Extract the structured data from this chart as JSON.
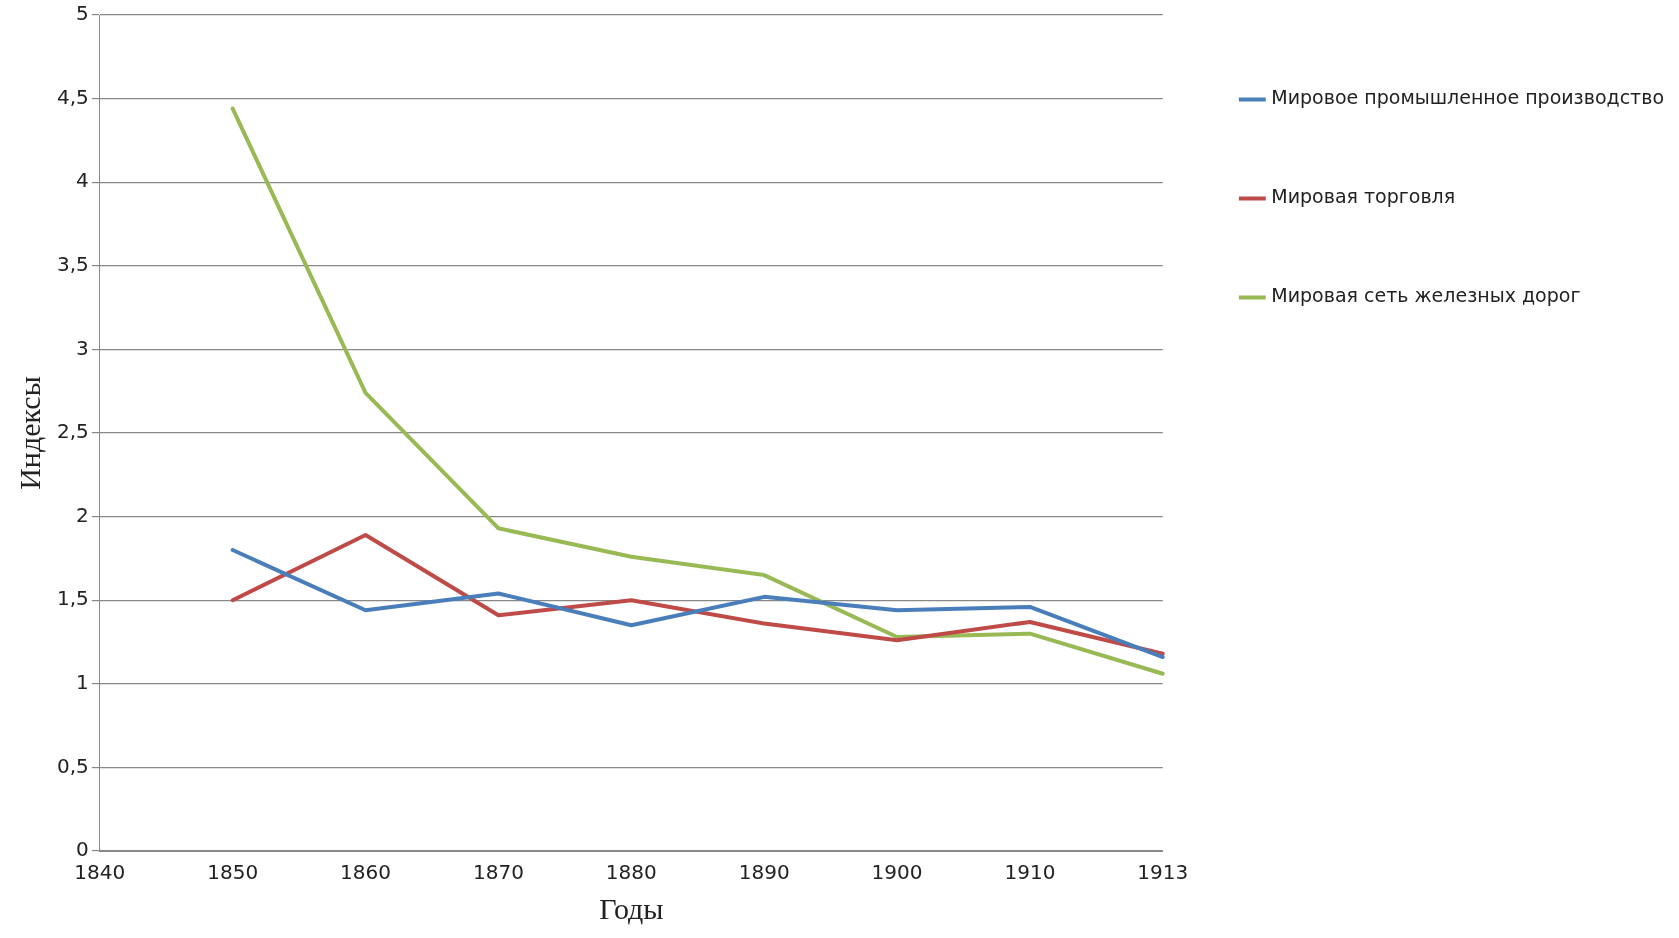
{
  "chart_data": {
    "type": "line",
    "xlabel": "Годы",
    "ylabel": "Индексы",
    "categories": [
      "1840",
      "1850",
      "1860",
      "1870",
      "1880",
      "1890",
      "1900",
      "1910",
      "1913"
    ],
    "series": [
      {
        "name": "Мировое промышленное производство",
        "color": "#4a7ebb",
        "values": [
          null,
          1.8,
          1.44,
          1.54,
          1.35,
          1.52,
          1.44,
          1.46,
          1.16
        ]
      },
      {
        "name": "Мировая торговля",
        "color": "#be4b48",
        "values": [
          null,
          1.5,
          1.89,
          1.41,
          1.5,
          1.36,
          1.26,
          1.37,
          1.18
        ]
      },
      {
        "name": "Мировая сеть железных дорог",
        "color": "#98b954",
        "values": [
          null,
          4.44,
          2.74,
          1.93,
          1.76,
          1.65,
          1.28,
          1.3,
          1.06
        ]
      }
    ],
    "ylim": [
      0,
      5
    ],
    "yticks": [
      0,
      {
        "value": 0.5,
        "label": "0,5"
      },
      1,
      {
        "value": 1.5,
        "label": "1,5"
      },
      2,
      {
        "value": 2.5,
        "label": "2,5"
      },
      3,
      {
        "value": 3.5,
        "label": "3,5"
      },
      4,
      {
        "value": 4.5,
        "label": "4,5"
      },
      5
    ],
    "grid": "y",
    "legend": "right",
    "marker": "none",
    "line_style": "solid"
  }
}
